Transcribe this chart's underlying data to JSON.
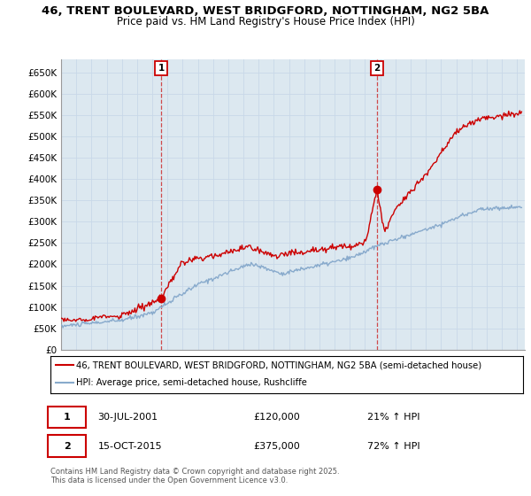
{
  "title_line1": "46, TRENT BOULEVARD, WEST BRIDGFORD, NOTTINGHAM, NG2 5BA",
  "title_line2": "Price paid vs. HM Land Registry's House Price Index (HPI)",
  "yticks": [
    0,
    50000,
    100000,
    150000,
    200000,
    250000,
    300000,
    350000,
    400000,
    450000,
    500000,
    550000,
    600000,
    650000
  ],
  "ytick_labels": [
    "£0",
    "£50K",
    "£100K",
    "£150K",
    "£200K",
    "£250K",
    "£300K",
    "£350K",
    "£400K",
    "£450K",
    "£500K",
    "£550K",
    "£600K",
    "£650K"
  ],
  "ymin": 0,
  "ymax": 680000,
  "xmin": 1995.0,
  "xmax": 2025.5,
  "marker1_x": 2001.58,
  "marker1_y": 120000,
  "marker2_x": 2015.79,
  "marker2_y": 375000,
  "vline1_x": 2001.58,
  "vline2_x": 2015.79,
  "grid_color": "#c8d8e8",
  "plot_bg_color": "#dce8f0",
  "red_line_color": "#cc0000",
  "blue_line_color": "#88aacc",
  "legend_line1": "46, TRENT BOULEVARD, WEST BRIDGFORD, NOTTINGHAM, NG2 5BA (semi-detached house)",
  "legend_line2": "HPI: Average price, semi-detached house, Rushcliffe",
  "annotation1_date": "30-JUL-2001",
  "annotation1_price": "£120,000",
  "annotation1_hpi": "21% ↑ HPI",
  "annotation2_date": "15-OCT-2015",
  "annotation2_price": "£375,000",
  "annotation2_hpi": "72% ↑ HPI",
  "footnote": "Contains HM Land Registry data © Crown copyright and database right 2025.\nThis data is licensed under the Open Government Licence v3.0."
}
